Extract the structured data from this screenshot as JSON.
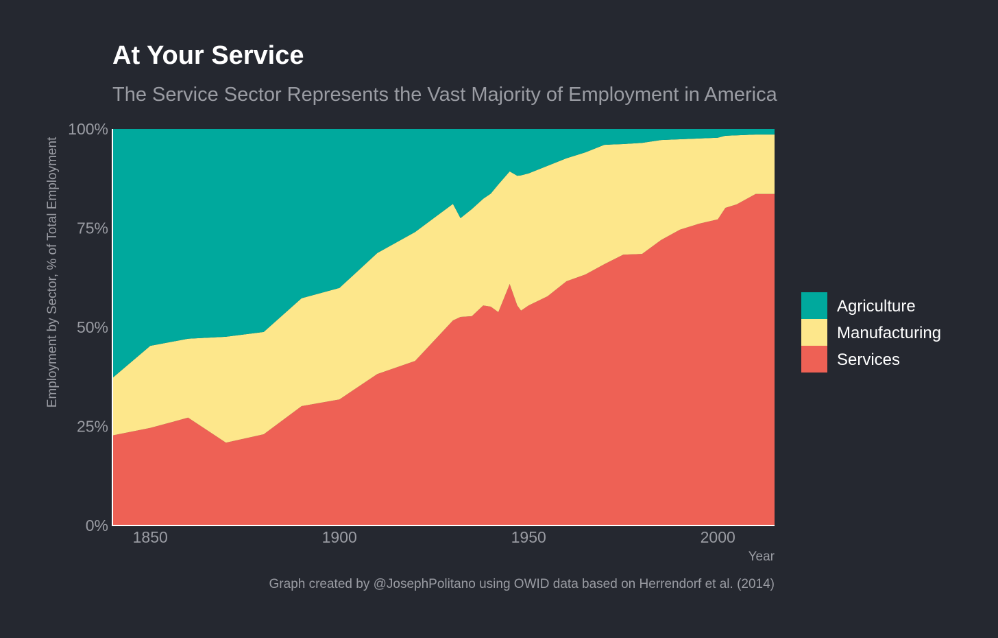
{
  "chart_data": {
    "type": "area",
    "stacked": true,
    "title": "At Your Service",
    "subtitle": "The Service Sector Represents the Vast Majority of Employment in America",
    "xlabel": "Year",
    "ylabel": "Employment by Sector, % of Total Employment",
    "caption": "Graph created by @JosephPolitano using OWID data based on Herrendorf et al. (2014)",
    "xlim": [
      1840,
      2015
    ],
    "ylim": [
      0,
      100
    ],
    "xticks": [
      1850,
      1900,
      1950,
      2000
    ],
    "yticks": [
      0,
      25,
      50,
      75,
      100
    ],
    "ytick_labels": [
      "0%",
      "25%",
      "50%",
      "75%",
      "100%"
    ],
    "legend_position": "right",
    "x": [
      1840,
      1850,
      1860,
      1870,
      1880,
      1890,
      1900,
      1910,
      1920,
      1930,
      1932,
      1935,
      1938,
      1940,
      1942,
      1945,
      1947,
      1948,
      1950,
      1955,
      1960,
      1965,
      1970,
      1975,
      1980,
      1985,
      1990,
      1995,
      2000,
      2002,
      2005,
      2010,
      2015
    ],
    "series": [
      {
        "name": "Services",
        "color": "#EE6155",
        "values": [
          22.7,
          24.6,
          27.2,
          20.9,
          23.0,
          30.1,
          31.8,
          38.2,
          41.5,
          51.7,
          52.6,
          52.8,
          55.5,
          55.2,
          53.8,
          60.9,
          55.5,
          54.2,
          55.5,
          57.8,
          61.6,
          63.3,
          65.9,
          68.3,
          68.5,
          72.0,
          74.6,
          76.1,
          77.2,
          80.1,
          81.0,
          83.6,
          83.6
        ]
      },
      {
        "name": "Manufacturing",
        "color": "#FDE78B",
        "values": [
          14.5,
          20.7,
          19.9,
          26.7,
          25.8,
          27.2,
          28.1,
          30.5,
          32.5,
          29.4,
          24.9,
          27.0,
          26.9,
          28.5,
          32.2,
          28.4,
          32.7,
          34.1,
          33.3,
          32.9,
          31.0,
          30.8,
          30.1,
          27.9,
          28.0,
          25.2,
          22.8,
          21.5,
          20.6,
          18.2,
          17.4,
          15.0,
          15.0
        ]
      },
      {
        "name": "Agriculture",
        "color": "#00A99D",
        "values": [
          62.8,
          54.7,
          52.9,
          52.4,
          51.2,
          42.7,
          40.1,
          31.3,
          26.0,
          18.9,
          22.5,
          20.2,
          17.6,
          16.3,
          14.0,
          10.7,
          11.8,
          11.7,
          11.2,
          9.3,
          7.4,
          5.9,
          4.0,
          3.8,
          3.5,
          2.8,
          2.6,
          2.4,
          2.2,
          1.7,
          1.6,
          1.4,
          1.4
        ]
      }
    ],
    "legend_order": [
      "Agriculture",
      "Manufacturing",
      "Services"
    ]
  }
}
